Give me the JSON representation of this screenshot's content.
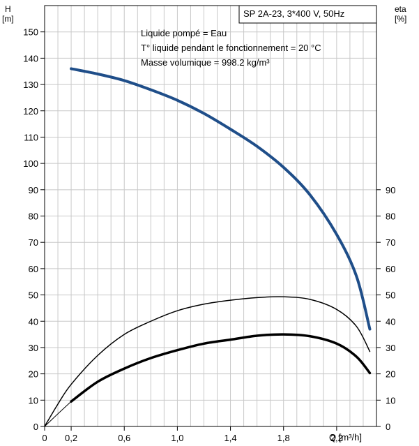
{
  "chart_data": {
    "type": "line",
    "title_box": "SP 2A-23, 3*400 V, 50Hz",
    "annotations": [
      "Liquide pompé = Eau",
      "T° liquide pendant le fonctionnement = 20 °C",
      "Masse volumique = 998.2 kg/m³"
    ],
    "left_axis": {
      "label_line1": "H",
      "label_line2": "[m]",
      "ylim": [
        0,
        160
      ],
      "ticks": [
        0,
        10,
        20,
        30,
        40,
        50,
        60,
        70,
        80,
        90,
        100,
        110,
        120,
        130,
        140,
        150
      ]
    },
    "right_axis": {
      "label_line1": "eta",
      "label_line2": "[%]",
      "ylim": [
        0,
        160
      ],
      "ticks": [
        0,
        10,
        20,
        30,
        40,
        50,
        60,
        70,
        80,
        90
      ]
    },
    "x_axis": {
      "label": "Q [m³/h]",
      "xlim": [
        0,
        2.5
      ],
      "tick_values": [
        0,
        0.2,
        0.6,
        1.0,
        1.4,
        1.8,
        2.2
      ],
      "tick_labels": [
        "0",
        "0,2",
        "0,6",
        "1,0",
        "1,4",
        "1,8",
        "2,2"
      ],
      "grid_step": 0.1
    },
    "grid": true,
    "series": [
      {
        "color": "#1f4e89",
        "width": 4,
        "x": [
          0.2,
          0.4,
          0.6,
          0.8,
          1.0,
          1.2,
          1.4,
          1.6,
          1.8,
          2.0,
          2.2,
          2.35,
          2.45
        ],
        "y": [
          136,
          134,
          131.5,
          128,
          124,
          119,
          113,
          106.5,
          98.5,
          88,
          73,
          57,
          37
        ]
      },
      {
        "color": "#000000",
        "width": 1.5,
        "x": [
          0.0,
          0.1,
          0.2,
          0.4,
          0.6,
          0.8,
          1.0,
          1.2,
          1.4,
          1.6,
          1.8,
          2.0,
          2.2,
          2.35,
          2.45
        ],
        "y": [
          0,
          8.5,
          16,
          27,
          35,
          40,
          44,
          46.5,
          48,
          49,
          49.3,
          48.3,
          44.5,
          38,
          28.5
        ]
      },
      {
        "color": "#000000",
        "width": 3.5,
        "x": [
          0.2,
          0.4,
          0.6,
          0.8,
          1.0,
          1.2,
          1.4,
          1.6,
          1.8,
          2.0,
          2.2,
          2.35,
          2.45
        ],
        "y": [
          9.5,
          17,
          22,
          26,
          29,
          31.5,
          33,
          34.5,
          35,
          34.3,
          31.5,
          26.5,
          20.3
        ]
      },
      {
        "color": "#000000",
        "width": 1,
        "x": [
          0.0,
          0.1,
          0.2
        ],
        "y": [
          0,
          4.8,
          9.5
        ]
      }
    ]
  }
}
